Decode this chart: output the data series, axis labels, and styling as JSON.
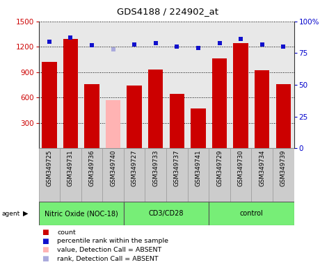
{
  "title": "GDS4188 / 224902_at",
  "samples": [
    "GSM349725",
    "GSM349731",
    "GSM349736",
    "GSM349740",
    "GSM349727",
    "GSM349733",
    "GSM349737",
    "GSM349741",
    "GSM349729",
    "GSM349730",
    "GSM349734",
    "GSM349739"
  ],
  "bar_values": [
    1020,
    1290,
    760,
    565,
    740,
    930,
    640,
    470,
    1060,
    1240,
    920,
    755
  ],
  "bar_colors": [
    "#cc0000",
    "#cc0000",
    "#cc0000",
    "#ffb3b3",
    "#cc0000",
    "#cc0000",
    "#cc0000",
    "#cc0000",
    "#cc0000",
    "#cc0000",
    "#cc0000",
    "#cc0000"
  ],
  "percentile_values": [
    84,
    87,
    81,
    78,
    82,
    83,
    80,
    79,
    83,
    86,
    82,
    80
  ],
  "percentile_colors": [
    "#1111cc",
    "#1111cc",
    "#1111cc",
    "#aaaadd",
    "#1111cc",
    "#1111cc",
    "#1111cc",
    "#1111cc",
    "#1111cc",
    "#1111cc",
    "#1111cc",
    "#1111cc"
  ],
  "groups": [
    {
      "label": "Nitric Oxide (NOC-18)",
      "start": 0,
      "end": 4,
      "color": "#77ee77"
    },
    {
      "label": "CD3/CD28",
      "start": 4,
      "end": 8,
      "color": "#77ee77"
    },
    {
      "label": "control",
      "start": 8,
      "end": 12,
      "color": "#77ee77"
    }
  ],
  "ylim_left": [
    0,
    1500
  ],
  "ylim_right": [
    0,
    100
  ],
  "yticks_left": [
    300,
    600,
    900,
    1200,
    1500
  ],
  "yticks_right": [
    0,
    25,
    50,
    75,
    100
  ],
  "ylabel_left_color": "#cc0000",
  "ylabel_right_color": "#0000cc",
  "background_color": "#ffffff",
  "plot_bg_color": "#e8e8e8",
  "sample_box_color": "#cccccc",
  "legend_items": [
    {
      "color": "#cc0000",
      "label": "count"
    },
    {
      "color": "#1111cc",
      "label": "percentile rank within the sample"
    },
    {
      "color": "#ffb3b3",
      "label": "value, Detection Call = ABSENT"
    },
    {
      "color": "#aaaadd",
      "label": "rank, Detection Call = ABSENT"
    }
  ]
}
